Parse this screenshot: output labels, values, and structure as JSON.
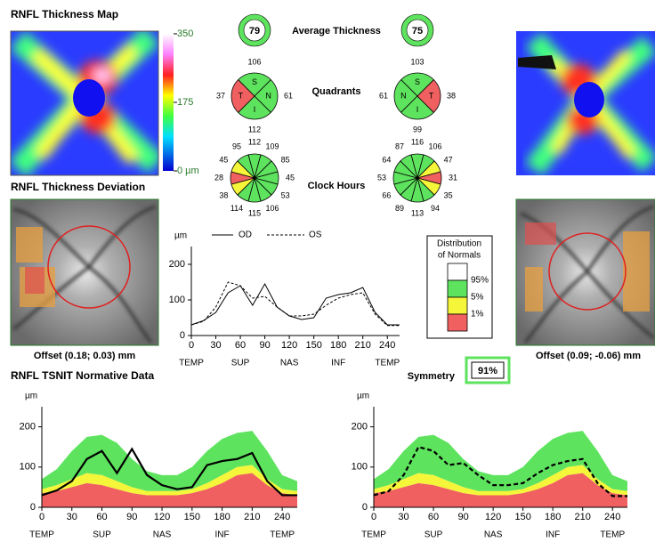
{
  "map": {
    "title": "RNFL Thickness Map",
    "scale": [
      350,
      175,
      {
        "value": 0,
        "label": "0 µm"
      }
    ],
    "scale_range": [
      0,
      350
    ]
  },
  "deviation": {
    "title": "RNFL Thickness Deviation",
    "od_offset": "Offset (0.18; 0.03) mm",
    "os_offset": "Offset (0.09; -0.06) mm"
  },
  "average": {
    "label": "Average Thickness",
    "od": 79,
    "os": 75
  },
  "quadrants": {
    "label": "Quadrants",
    "sectors": [
      "S",
      "N",
      "I",
      "T"
    ],
    "od": {
      "values": [
        106,
        61,
        112,
        37
      ],
      "colors": [
        "#5ee35e",
        "#5ee35e",
        "#5ee35e",
        "#f06060"
      ]
    },
    "os": {
      "values": [
        103,
        61,
        99,
        38
      ],
      "colors": [
        "#5ee35e",
        "#5ee35e",
        "#5ee35e",
        "#f06060"
      ]
    }
  },
  "clock": {
    "label": "Clock Hours",
    "od": {
      "values": [
        112,
        109,
        85,
        45,
        53,
        106,
        115,
        114,
        38,
        28,
        45,
        95
      ],
      "colors": [
        "#5ee35e",
        "#5ee35e",
        "#5ee35e",
        "#5ee35e",
        "#5ee35e",
        "#5ee35e",
        "#5ee35e",
        "#5ee35e",
        "#f5f53a",
        "#f06060",
        "#f5f53a",
        "#5ee35e"
      ]
    },
    "os": {
      "values": [
        116,
        106,
        47,
        31,
        35,
        94,
        113,
        89,
        66,
        53,
        64,
        87
      ],
      "colors": [
        "#5ee35e",
        "#5ee35e",
        "#f5f53a",
        "#f06060",
        "#f5f53a",
        "#5ee35e",
        "#5ee35e",
        "#5ee35e",
        "#5ee35e",
        "#5ee35e",
        "#5ee35e",
        "#5ee35e"
      ]
    }
  },
  "tsnit": {
    "unit": "µm",
    "legend": {
      "od": "OD",
      "os": "OS"
    },
    "x": [
      0,
      15,
      30,
      45,
      60,
      75,
      90,
      105,
      120,
      135,
      150,
      165,
      180,
      195,
      210,
      225,
      240,
      255
    ],
    "od": [
      30,
      42,
      65,
      120,
      140,
      85,
      145,
      80,
      55,
      45,
      50,
      105,
      115,
      120,
      135,
      65,
      30,
      30
    ],
    "os": [
      30,
      40,
      80,
      150,
      140,
      105,
      110,
      80,
      55,
      55,
      60,
      85,
      105,
      115,
      120,
      60,
      28,
      28
    ],
    "xlim": [
      0,
      255
    ],
    "ylim": [
      0,
      250
    ],
    "xticks": [
      0,
      30,
      60,
      90,
      120,
      150,
      180,
      210,
      240
    ],
    "yticks": [
      0,
      100,
      200
    ],
    "regions": [
      "TEMP",
      "SUP",
      "NAS",
      "INF",
      "TEMP"
    ]
  },
  "normals": {
    "title": [
      "Distribution",
      "of Normals"
    ],
    "labels": [
      "95%",
      "5%",
      "1%"
    ],
    "colors": [
      "#ffffff",
      "#5ee35e",
      "#f5f53a",
      "#f06060"
    ]
  },
  "symmetry": {
    "label": "Symmetry",
    "value": "91%"
  },
  "normative": {
    "title": "RNFL TSNIT Normative Data",
    "p1": [
      35,
      40,
      50,
      60,
      55,
      45,
      35,
      30,
      30,
      30,
      35,
      45,
      60,
      80,
      85,
      55,
      35,
      30
    ],
    "p5": [
      45,
      55,
      70,
      85,
      80,
      65,
      50,
      40,
      40,
      40,
      45,
      60,
      80,
      100,
      105,
      70,
      45,
      40
    ],
    "p95": [
      70,
      95,
      140,
      175,
      180,
      160,
      120,
      90,
      80,
      80,
      100,
      140,
      170,
      185,
      190,
      140,
      80,
      65
    ]
  }
}
